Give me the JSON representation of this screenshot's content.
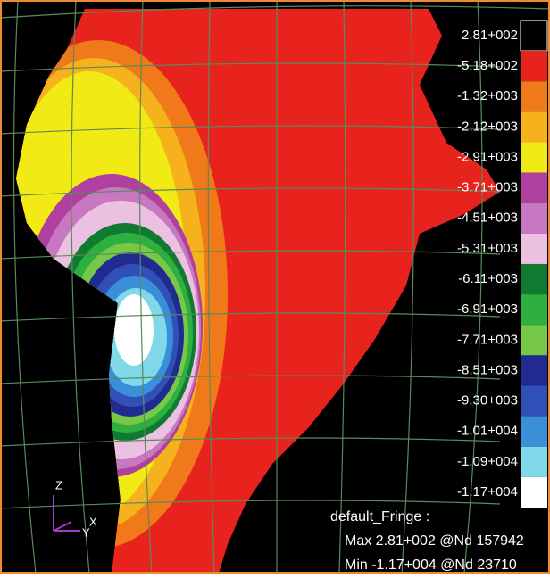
{
  "legend": {
    "entries": [
      {
        "label": "2.81+002",
        "color": "#000000"
      },
      {
        "label": "-5.18+002",
        "color": "#e8231e"
      },
      {
        "label": "-1.32+003",
        "color": "#f07a1a"
      },
      {
        "label": "-2.12+003",
        "color": "#f5b21c"
      },
      {
        "label": "-2.91+003",
        "color": "#f2ea14"
      },
      {
        "label": "-3.71+003",
        "color": "#b040a0"
      },
      {
        "label": "-4.51+003",
        "color": "#c878c0"
      },
      {
        "label": "-5.31+003",
        "color": "#ecc0e0"
      },
      {
        "label": "-6.11+003",
        "color": "#107a30"
      },
      {
        "label": "-6.91+003",
        "color": "#2eb040"
      },
      {
        "label": "-7.71+003",
        "color": "#78c848"
      },
      {
        "label": "-8.51+003",
        "color": "#202a90"
      },
      {
        "label": "-9.30+003",
        "color": "#3050b8"
      },
      {
        "label": "-1.01+004",
        "color": "#3a90d8"
      },
      {
        "label": "-1.09+004",
        "color": "#80d8e8"
      },
      {
        "label": "-1.17+004",
        "color": "#ffffff"
      }
    ]
  },
  "result": {
    "title": "default_Fringe :",
    "max": "Max 2.81+002 @Nd 157942",
    "min": "Min -1.17+004 @Nd 23710"
  },
  "triad": {
    "z": "Z",
    "y": "Y",
    "x": "X"
  }
}
